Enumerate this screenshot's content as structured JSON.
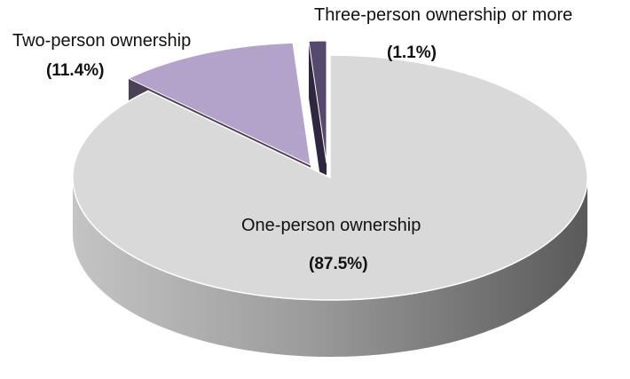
{
  "chart_data": {
    "type": "pie",
    "title": "",
    "slices": [
      {
        "label": "One-person ownership",
        "value_label": "(87.5%)",
        "value": 87.5,
        "color": "#d9d9d9",
        "side_color": "#9a9a9a"
      },
      {
        "label": "Two-person ownership",
        "value_label": "(11.4%)",
        "value": 11.4,
        "color": "#b3a2c9",
        "side_color": "#4a4254"
      },
      {
        "label": "Three-person ownership or more",
        "value_label": "(1.1%)",
        "value": 1.1,
        "color": "#57496e",
        "side_color": "#2f2740"
      }
    ],
    "three_d": true,
    "exploded": true,
    "legend": "none"
  }
}
